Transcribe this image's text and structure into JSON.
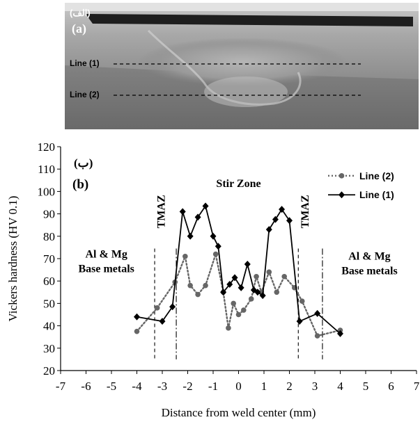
{
  "photo": {
    "label_fa": "(الف)",
    "label": "(a)",
    "line1_label": "Line (1)",
    "line2_label": "Line (2)"
  },
  "chart_data": {
    "type": "line",
    "panel_label_fa": "(ب)",
    "panel_label": "(b)",
    "title": "",
    "xlabel": "Distance from weld center (mm)",
    "ylabel": "Vickers hardness (HV 0.1)",
    "xlim": [
      -7,
      7
    ],
    "ylim": [
      20,
      120
    ],
    "xticks": [
      -7,
      -6,
      -5,
      -4,
      -3,
      -2,
      -1,
      0,
      1,
      2,
      3,
      4,
      5,
      6,
      7
    ],
    "yticks": [
      20,
      30,
      40,
      50,
      60,
      70,
      80,
      90,
      100,
      110,
      120
    ],
    "grid": false,
    "legend_position": "top-right",
    "series": [
      {
        "name": "Line (2)",
        "style": "dotted",
        "marker": "circle",
        "color": "#666666",
        "x": [
          -4,
          -3.2,
          -2.5,
          -2.1,
          -1.9,
          -1.6,
          -1.3,
          -0.9,
          -0.6,
          -0.4,
          -0.2,
          0,
          0.2,
          0.5,
          0.7,
          0.9,
          1.2,
          1.5,
          1.8,
          2.2,
          2.5,
          3.1,
          4
        ],
        "y": [
          37.5,
          48,
          59.5,
          71,
          58,
          54,
          58,
          72,
          55,
          39,
          50,
          45,
          47,
          52,
          62,
          55,
          64,
          55,
          62,
          57,
          51,
          35.5,
          38
        ]
      },
      {
        "name": "Line (1)",
        "style": "solid",
        "marker": "diamond",
        "color": "#000000",
        "x": [
          -4,
          -3,
          -2.6,
          -2.2,
          -1.9,
          -1.6,
          -1.3,
          -1,
          -0.8,
          -0.6,
          -0.35,
          -0.15,
          0.1,
          0.35,
          0.6,
          0.75,
          0.95,
          1.2,
          1.45,
          1.7,
          2,
          2.4,
          3.1,
          4
        ],
        "y": [
          44,
          42,
          48.5,
          91,
          80,
          88.5,
          93.5,
          80,
          75.5,
          55,
          58.5,
          61.5,
          57,
          67.5,
          56,
          55,
          53.5,
          83,
          87.5,
          92,
          87,
          42,
          45.5,
          36.5
        ]
      }
    ],
    "annotations": [
      {
        "id": "stir-zone-label",
        "text": "Stir Zone",
        "x": 0,
        "y": 102
      },
      {
        "id": "tmaz-left-label",
        "text": "TMAZ",
        "x": -2.9,
        "y": 91,
        "rotate": -90
      },
      {
        "id": "tmaz-right-label",
        "text": "TMAZ",
        "x": 2.75,
        "y": 91,
        "rotate": -90
      },
      {
        "id": "base-left-label-1",
        "text": "Al & Mg",
        "x": -5.2,
        "y": 70.5
      },
      {
        "id": "base-left-label-2",
        "text": "Base metals",
        "x": -5.2,
        "y": 64
      },
      {
        "id": "base-right-label-1",
        "text": "Al & Mg",
        "x": 5.15,
        "y": 69.5
      },
      {
        "id": "base-right-label-2",
        "text": "Base metals",
        "x": 5.15,
        "y": 63
      }
    ],
    "boundaries": [
      {
        "x": -3.3,
        "style": "dashed"
      },
      {
        "x": -2.45,
        "style": "dash-dot"
      },
      {
        "x": 2.35,
        "style": "dashed"
      },
      {
        "x": 3.3,
        "style": "dash-dot"
      }
    ]
  }
}
